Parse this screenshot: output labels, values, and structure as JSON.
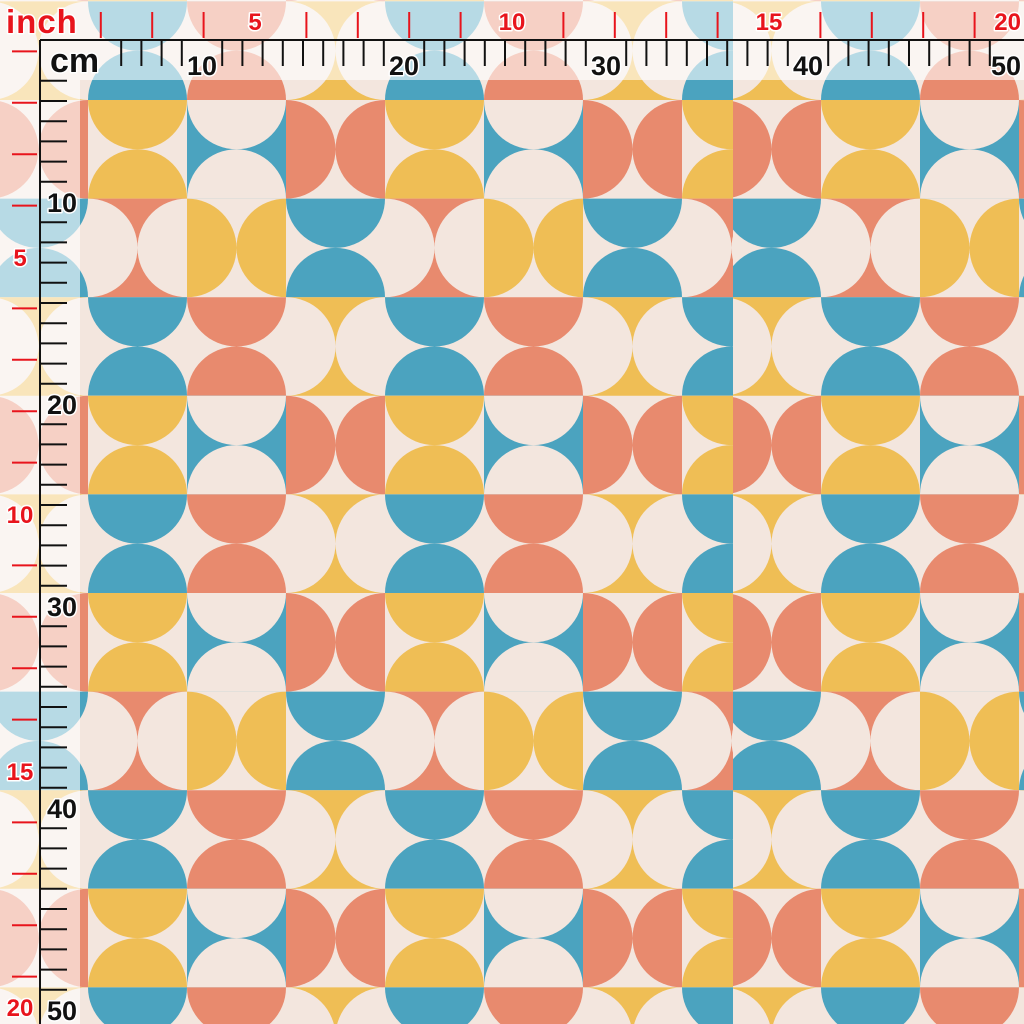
{
  "rulers": {
    "inch_unit_label": "inch",
    "cm_unit_label": "cm",
    "top_inch_labels": [
      "5",
      "10",
      "15",
      "20"
    ],
    "top_cm_labels": [
      "10",
      "20",
      "30",
      "40",
      "50"
    ],
    "left_inch_labels": [
      "5",
      "10",
      "15",
      "20"
    ],
    "left_cm_labels": [
      "10",
      "20",
      "30",
      "40",
      "50"
    ],
    "inch_color": "#e8141c",
    "cm_color": "#111111"
  },
  "pattern": {
    "colors": {
      "cream": "#f3e6de",
      "yellow": "#efbe55",
      "blue": "#4ba3bf",
      "salmon": "#e88a6e"
    },
    "tile_rows": {
      "A": [
        {
          "shape": "yellow",
          "ground": "cream",
          "orientation": "vertical"
        },
        {
          "shape": "cream",
          "ground": "blue",
          "orientation": "vertical"
        },
        {
          "shape": "salmon",
          "ground": "cream",
          "orientation": "horizontal"
        }
      ],
      "B": [
        {
          "shape": "cream",
          "ground": "salmon",
          "orientation": "horizontal"
        },
        {
          "shape": "yellow",
          "ground": "cream",
          "orientation": "horizontal"
        },
        {
          "shape": "blue",
          "ground": "cream",
          "orientation": "vertical"
        }
      ],
      "C": [
        {
          "shape": "blue",
          "ground": "cream",
          "orientation": "vertical"
        },
        {
          "shape": "salmon",
          "ground": "cream",
          "orientation": "vertical"
        },
        {
          "shape": "cream",
          "ground": "yellow",
          "orientation": "horizontal"
        }
      ]
    },
    "row_sequence": [
      "A",
      "B",
      "C",
      "A",
      "C"
    ]
  }
}
